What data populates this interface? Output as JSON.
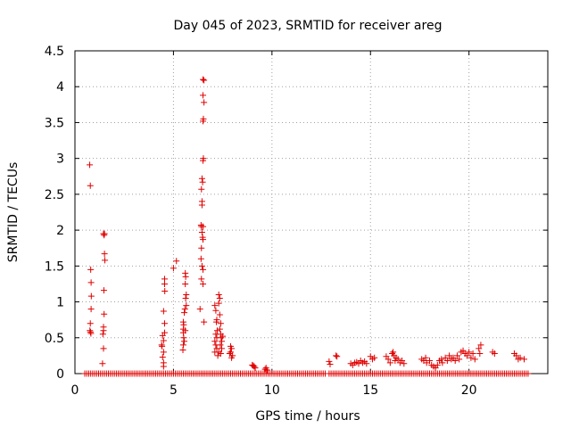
{
  "chart_data": {
    "type": "scatter",
    "title": "Day 045 of 2023, SRMTID for receiver areg",
    "xlabel": "GPS time / hours",
    "ylabel": "SRMTID / TECUs",
    "xlim": [
      0,
      24
    ],
    "ylim": [
      0,
      4.5
    ],
    "x_ticks": [
      0,
      5,
      10,
      15,
      20
    ],
    "x_tick_labels": [
      "0",
      "5",
      "10",
      "15",
      "20"
    ],
    "y_ticks": [
      0,
      0.5,
      1,
      1.5,
      2,
      2.5,
      3,
      3.5,
      4,
      4.5
    ],
    "y_tick_labels": [
      "0",
      "0.5",
      "1",
      "1.5",
      "2",
      "2.5",
      "3",
      "3.5",
      "4",
      "4.5"
    ],
    "grid": true,
    "marker": "+",
    "color": "#e00000",
    "baseline_zero_ranges": [
      [
        0.5,
        12.7
      ],
      [
        12.9,
        23.0
      ]
    ],
    "series": [
      {
        "name": "SRMTID",
        "points": [
          [
            0.75,
            2.91
          ],
          [
            0.78,
            2.62
          ],
          [
            0.8,
            1.45
          ],
          [
            0.82,
            1.27
          ],
          [
            0.83,
            1.08
          ],
          [
            0.82,
            0.9
          ],
          [
            0.78,
            0.7
          ],
          [
            0.76,
            0.6
          ],
          [
            0.79,
            0.58
          ],
          [
            0.81,
            0.56
          ],
          [
            1.45,
            1.95
          ],
          [
            1.48,
            1.93
          ],
          [
            1.5,
            1.95
          ],
          [
            1.5,
            1.67
          ],
          [
            1.52,
            1.58
          ],
          [
            1.47,
            1.16
          ],
          [
            1.48,
            0.83
          ],
          [
            1.45,
            0.65
          ],
          [
            1.45,
            0.6
          ],
          [
            1.42,
            0.55
          ],
          [
            1.45,
            0.35
          ],
          [
            1.4,
            0.14
          ],
          [
            4.45,
            0.53
          ],
          [
            4.5,
            0.46
          ],
          [
            4.4,
            0.4
          ],
          [
            4.42,
            0.38
          ],
          [
            4.5,
            0.3
          ],
          [
            4.45,
            0.23
          ],
          [
            4.5,
            0.15
          ],
          [
            4.5,
            0.1
          ],
          [
            4.55,
            1.32
          ],
          [
            4.55,
            1.25
          ],
          [
            4.56,
            1.15
          ],
          [
            4.5,
            0.87
          ],
          [
            4.55,
            0.7
          ],
          [
            4.55,
            0.57
          ],
          [
            5.0,
            1.47
          ],
          [
            5.15,
            1.57
          ],
          [
            5.5,
            0.72
          ],
          [
            5.52,
            0.68
          ],
          [
            5.5,
            0.62
          ],
          [
            5.5,
            0.57
          ],
          [
            5.52,
            0.5
          ],
          [
            5.55,
            0.45
          ],
          [
            5.5,
            0.4
          ],
          [
            5.48,
            0.33
          ],
          [
            5.6,
            1.4
          ],
          [
            5.62,
            1.35
          ],
          [
            5.6,
            1.25
          ],
          [
            5.65,
            1.1
          ],
          [
            5.62,
            1.05
          ],
          [
            5.65,
            0.95
          ],
          [
            5.58,
            0.9
          ],
          [
            5.55,
            0.85
          ],
          [
            5.6,
            0.6
          ],
          [
            6.5,
            4.1
          ],
          [
            6.55,
            4.09
          ],
          [
            6.5,
            3.88
          ],
          [
            6.55,
            3.78
          ],
          [
            6.52,
            3.55
          ],
          [
            6.5,
            3.52
          ],
          [
            6.52,
            3.0
          ],
          [
            6.5,
            2.97
          ],
          [
            6.45,
            2.72
          ],
          [
            6.48,
            2.67
          ],
          [
            6.42,
            2.57
          ],
          [
            6.45,
            2.4
          ],
          [
            6.45,
            2.35
          ],
          [
            6.4,
            2.07
          ],
          [
            6.42,
            2.05
          ],
          [
            6.5,
            2.05
          ],
          [
            6.45,
            1.97
          ],
          [
            6.48,
            1.9
          ],
          [
            6.5,
            1.87
          ],
          [
            6.42,
            1.75
          ],
          [
            6.4,
            1.6
          ],
          [
            6.45,
            1.5
          ],
          [
            6.5,
            1.45
          ],
          [
            6.42,
            1.32
          ],
          [
            6.5,
            1.25
          ],
          [
            6.35,
            0.9
          ],
          [
            6.55,
            0.72
          ],
          [
            7.1,
            0.95
          ],
          [
            7.15,
            0.88
          ],
          [
            7.2,
            0.75
          ],
          [
            7.18,
            0.72
          ],
          [
            7.22,
            0.6
          ],
          [
            7.15,
            0.55
          ],
          [
            7.2,
            0.5
          ],
          [
            7.1,
            0.45
          ],
          [
            7.15,
            0.4
          ],
          [
            7.2,
            0.35
          ],
          [
            7.1,
            0.3
          ],
          [
            7.25,
            0.25
          ],
          [
            7.3,
            1.1
          ],
          [
            7.35,
            1.05
          ],
          [
            7.3,
            0.98
          ],
          [
            7.35,
            0.82
          ],
          [
            7.4,
            0.7
          ],
          [
            7.35,
            0.62
          ],
          [
            7.4,
            0.55
          ],
          [
            7.42,
            0.5
          ],
          [
            7.45,
            0.45
          ],
          [
            7.38,
            0.4
          ],
          [
            7.3,
            0.3
          ],
          [
            7.5,
            0.52
          ],
          [
            7.45,
            0.35
          ],
          [
            7.4,
            0.28
          ],
          [
            7.9,
            0.38
          ],
          [
            7.95,
            0.35
          ],
          [
            7.9,
            0.3
          ],
          [
            8.0,
            0.25
          ],
          [
            7.95,
            0.22
          ],
          [
            7.85,
            0.28
          ],
          [
            9.0,
            0.12
          ],
          [
            9.1,
            0.1
          ],
          [
            9.15,
            0.08
          ],
          [
            9.05,
            0.11
          ],
          [
            9.7,
            0.08
          ],
          [
            9.75,
            0.05
          ],
          [
            9.65,
            0.06
          ],
          [
            12.9,
            0.17
          ],
          [
            12.95,
            0.13
          ],
          [
            13.3,
            0.24
          ],
          [
            13.25,
            0.25
          ],
          [
            14.0,
            0.14
          ],
          [
            14.1,
            0.12
          ],
          [
            14.2,
            0.15
          ],
          [
            14.3,
            0.16
          ],
          [
            14.4,
            0.14
          ],
          [
            14.5,
            0.18
          ],
          [
            14.6,
            0.15
          ],
          [
            14.7,
            0.17
          ],
          [
            14.8,
            0.14
          ],
          [
            15.0,
            0.24
          ],
          [
            15.1,
            0.2
          ],
          [
            15.2,
            0.22
          ],
          [
            15.8,
            0.24
          ],
          [
            15.9,
            0.2
          ],
          [
            16.0,
            0.15
          ],
          [
            16.1,
            0.28
          ],
          [
            16.15,
            0.3
          ],
          [
            16.2,
            0.25
          ],
          [
            16.3,
            0.22
          ],
          [
            16.25,
            0.18
          ],
          [
            16.4,
            0.2
          ],
          [
            16.5,
            0.15
          ],
          [
            16.6,
            0.18
          ],
          [
            16.7,
            0.14
          ],
          [
            17.6,
            0.2
          ],
          [
            17.7,
            0.18
          ],
          [
            17.8,
            0.22
          ],
          [
            17.85,
            0.15
          ],
          [
            18.0,
            0.18
          ],
          [
            18.1,
            0.12
          ],
          [
            18.2,
            0.1
          ],
          [
            18.3,
            0.08
          ],
          [
            18.4,
            0.12
          ],
          [
            18.5,
            0.18
          ],
          [
            18.6,
            0.2
          ],
          [
            18.65,
            0.15
          ],
          [
            18.8,
            0.22
          ],
          [
            18.9,
            0.18
          ],
          [
            19.0,
            0.25
          ],
          [
            19.1,
            0.2
          ],
          [
            19.2,
            0.22
          ],
          [
            19.3,
            0.18
          ],
          [
            19.4,
            0.25
          ],
          [
            19.5,
            0.2
          ],
          [
            19.6,
            0.3
          ],
          [
            19.7,
            0.32
          ],
          [
            19.8,
            0.28
          ],
          [
            19.9,
            0.25
          ],
          [
            20.0,
            0.3
          ],
          [
            20.1,
            0.22
          ],
          [
            20.2,
            0.28
          ],
          [
            20.3,
            0.2
          ],
          [
            20.5,
            0.35
          ],
          [
            20.6,
            0.4
          ],
          [
            20.55,
            0.28
          ],
          [
            21.2,
            0.3
          ],
          [
            21.3,
            0.28
          ],
          [
            22.3,
            0.28
          ],
          [
            22.4,
            0.25
          ],
          [
            22.5,
            0.2
          ],
          [
            22.6,
            0.22
          ],
          [
            22.8,
            0.2
          ]
        ]
      }
    ]
  }
}
